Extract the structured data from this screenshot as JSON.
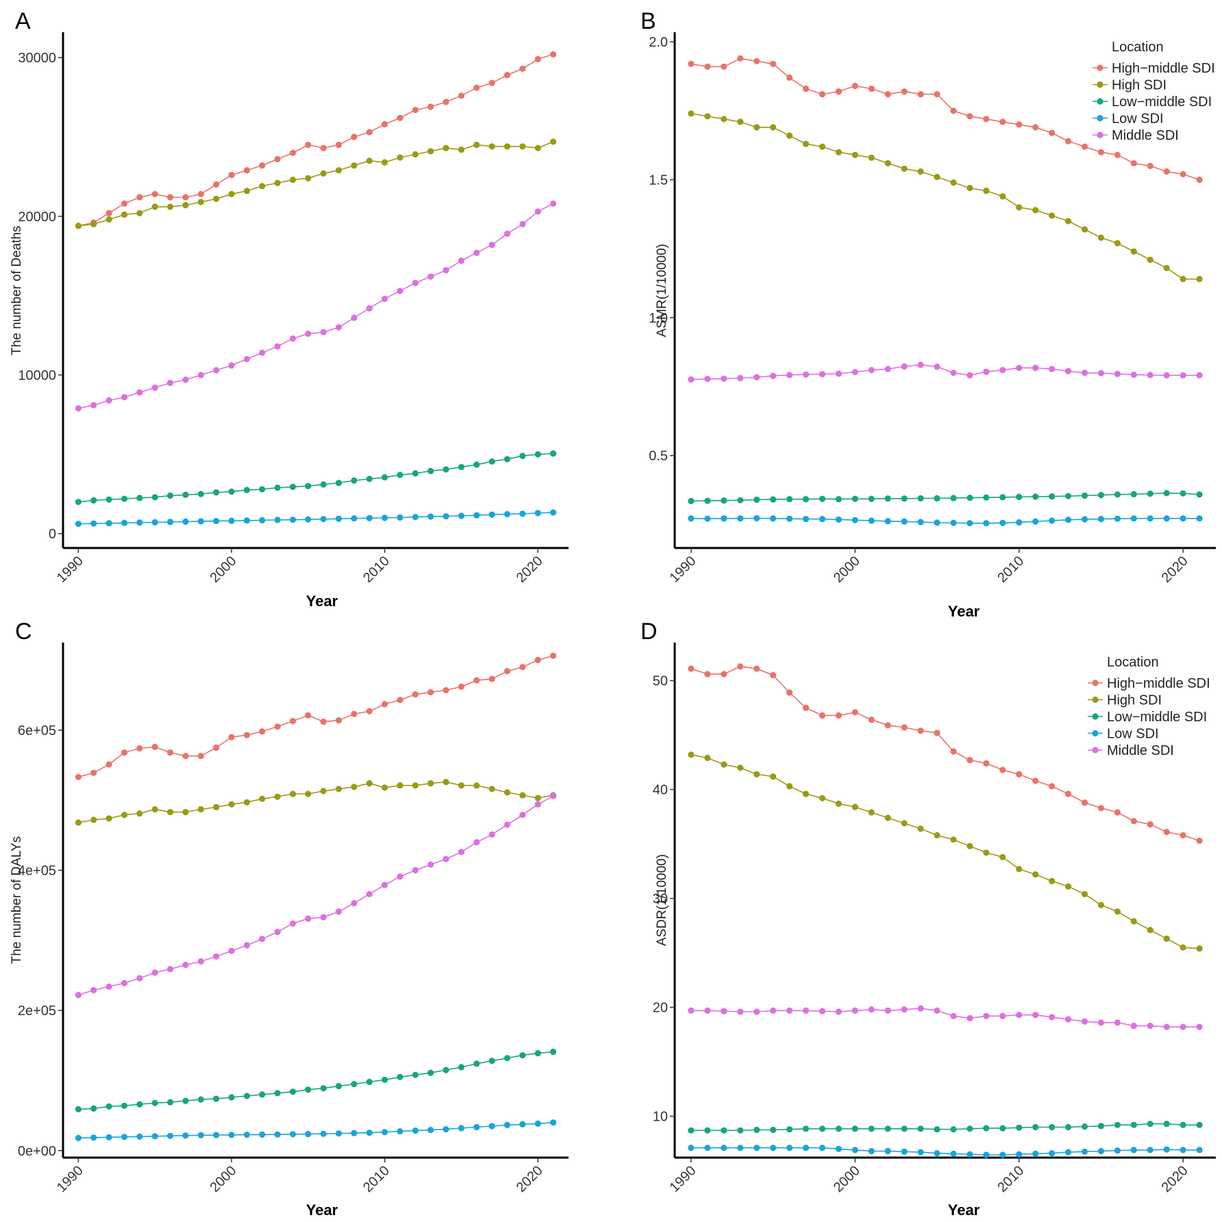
{
  "figure": {
    "panel_letters": [
      "A",
      "B",
      "C",
      "D"
    ]
  },
  "legend": {
    "title": "Location",
    "entries": [
      {
        "name": "High−middle SDI",
        "color": "#e8736b"
      },
      {
        "name": "High SDI",
        "color": "#9a9a16"
      },
      {
        "name": "Low−middle SDI",
        "color": "#16a874"
      },
      {
        "name": "Low SDI",
        "color": "#1ba3dc"
      },
      {
        "name": "Middle SDI",
        "color": "#dc70e0"
      }
    ]
  },
  "chart_data": [
    {
      "type": "line",
      "panel": "A",
      "xlabel": "Year",
      "ylabel": "The number of Deaths",
      "xlim": [
        1989,
        2022
      ],
      "ylim": [
        -900,
        31600
      ],
      "xticks": [
        1990,
        2000,
        2010,
        2020
      ],
      "yticks": [
        0,
        10000,
        20000,
        30000
      ],
      "ytick_labels": [
        "0",
        "10000",
        "20000",
        "30000"
      ],
      "legend": false,
      "x": [
        1990,
        1991,
        1992,
        1993,
        1994,
        1995,
        1996,
        1997,
        1998,
        1999,
        2000,
        2001,
        2002,
        2003,
        2004,
        2005,
        2006,
        2007,
        2008,
        2009,
        2010,
        2011,
        2012,
        2013,
        2014,
        2015,
        2016,
        2017,
        2018,
        2019,
        2020,
        2021
      ],
      "series": [
        {
          "name": "High−middle SDI",
          "values": [
            19400,
            19600,
            20200,
            20800,
            21200,
            21400,
            21200,
            21200,
            21400,
            22000,
            22600,
            22900,
            23200,
            23600,
            24000,
            24500,
            24300,
            24500,
            25000,
            25300,
            25800,
            26200,
            26700,
            26900,
            27200,
            27600,
            28100,
            28400,
            28900,
            29300,
            29900,
            30200
          ]
        },
        {
          "name": "High SDI",
          "values": [
            19400,
            19500,
            19800,
            20100,
            20200,
            20600,
            20600,
            20700,
            20900,
            21100,
            21400,
            21600,
            21900,
            22100,
            22300,
            22400,
            22700,
            22900,
            23200,
            23500,
            23400,
            23700,
            23900,
            24100,
            24300,
            24200,
            24500,
            24400,
            24400,
            24400,
            24300,
            24700
          ]
        },
        {
          "name": "Low−middle SDI",
          "values": [
            2000,
            2100,
            2150,
            2200,
            2250,
            2300,
            2400,
            2450,
            2500,
            2600,
            2650,
            2750,
            2800,
            2900,
            2950,
            3000,
            3100,
            3200,
            3350,
            3450,
            3550,
            3700,
            3800,
            3950,
            4050,
            4200,
            4350,
            4550,
            4700,
            4900,
            5000,
            5050
          ]
        },
        {
          "name": "Low SDI",
          "values": [
            620,
            640,
            660,
            680,
            700,
            720,
            740,
            760,
            780,
            800,
            810,
            830,
            850,
            870,
            880,
            900,
            920,
            940,
            960,
            980,
            1000,
            1020,
            1050,
            1080,
            1100,
            1130,
            1160,
            1200,
            1230,
            1260,
            1300,
            1340
          ]
        },
        {
          "name": "Middle SDI",
          "values": [
            7900,
            8100,
            8400,
            8600,
            8900,
            9200,
            9500,
            9700,
            10000,
            10300,
            10600,
            11000,
            11400,
            11800,
            12300,
            12600,
            12700,
            13000,
            13600,
            14200,
            14800,
            15300,
            15800,
            16200,
            16600,
            17200,
            17700,
            18200,
            18900,
            19500,
            20300,
            20800
          ]
        }
      ]
    },
    {
      "type": "line",
      "panel": "B",
      "xlabel": "Year",
      "ylabel": "ASMR(1/10000)",
      "xlim": [
        1989,
        2022
      ],
      "ylim": [
        0.165,
        2.035
      ],
      "xticks": [
        1990,
        2000,
        2010,
        2020
      ],
      "yticks": [
        0.5,
        1.0,
        1.5,
        2.0
      ],
      "ytick_labels": [
        "0.5",
        "1.0",
        "1.5",
        "2.0"
      ],
      "legend": true,
      "x": [
        1990,
        1991,
        1992,
        1993,
        1994,
        1995,
        1996,
        1997,
        1998,
        1999,
        2000,
        2001,
        2002,
        2003,
        2004,
        2005,
        2006,
        2007,
        2008,
        2009,
        2010,
        2011,
        2012,
        2013,
        2014,
        2015,
        2016,
        2017,
        2018,
        2019,
        2020,
        2021
      ],
      "series": [
        {
          "name": "High−middle SDI",
          "values": [
            1.92,
            1.91,
            1.91,
            1.94,
            1.93,
            1.92,
            1.87,
            1.83,
            1.81,
            1.82,
            1.84,
            1.83,
            1.81,
            1.82,
            1.81,
            1.81,
            1.75,
            1.73,
            1.72,
            1.71,
            1.7,
            1.69,
            1.67,
            1.64,
            1.62,
            1.6,
            1.59,
            1.56,
            1.55,
            1.53,
            1.52,
            1.5
          ]
        },
        {
          "name": "High SDI",
          "values": [
            1.74,
            1.73,
            1.72,
            1.71,
            1.69,
            1.69,
            1.66,
            1.63,
            1.62,
            1.6,
            1.59,
            1.58,
            1.56,
            1.54,
            1.53,
            1.51,
            1.49,
            1.47,
            1.46,
            1.44,
            1.4,
            1.39,
            1.37,
            1.35,
            1.32,
            1.29,
            1.27,
            1.24,
            1.21,
            1.18,
            1.14,
            1.14
          ]
        },
        {
          "name": "Low−middle SDI",
          "values": [
            0.335,
            0.336,
            0.337,
            0.338,
            0.34,
            0.341,
            0.342,
            0.342,
            0.343,
            0.342,
            0.343,
            0.343,
            0.344,
            0.344,
            0.345,
            0.345,
            0.346,
            0.347,
            0.348,
            0.349,
            0.35,
            0.351,
            0.352,
            0.353,
            0.355,
            0.357,
            0.359,
            0.36,
            0.362,
            0.364,
            0.363,
            0.359
          ]
        },
        {
          "name": "Low SDI",
          "values": [
            0.272,
            0.271,
            0.272,
            0.272,
            0.273,
            0.272,
            0.271,
            0.27,
            0.27,
            0.268,
            0.266,
            0.264,
            0.262,
            0.261,
            0.259,
            0.257,
            0.256,
            0.255,
            0.255,
            0.256,
            0.258,
            0.261,
            0.264,
            0.267,
            0.269,
            0.27,
            0.271,
            0.272,
            0.272,
            0.272,
            0.272,
            0.272
          ]
        },
        {
          "name": "Middle SDI",
          "values": [
            0.776,
            0.778,
            0.779,
            0.781,
            0.784,
            0.789,
            0.792,
            0.794,
            0.795,
            0.797,
            0.803,
            0.81,
            0.814,
            0.823,
            0.829,
            0.822,
            0.8,
            0.791,
            0.804,
            0.81,
            0.818,
            0.818,
            0.814,
            0.806,
            0.8,
            0.799,
            0.796,
            0.793,
            0.792,
            0.791,
            0.791,
            0.791
          ]
        }
      ]
    },
    {
      "type": "line",
      "panel": "C",
      "xlabel": "Year",
      "ylabel": "The number of DALYs",
      "xlim": [
        1989,
        2022
      ],
      "ylim": [
        -10000,
        725000
      ],
      "xticks": [
        1990,
        2000,
        2010,
        2020
      ],
      "yticks": [
        0,
        200000,
        400000,
        600000
      ],
      "ytick_labels": [
        "0e+00",
        "2e+05",
        "4e+05",
        "6e+05"
      ],
      "legend": false,
      "x": [
        1990,
        1991,
        1992,
        1993,
        1994,
        1995,
        1996,
        1997,
        1998,
        1999,
        2000,
        2001,
        2002,
        2003,
        2004,
        2005,
        2006,
        2007,
        2008,
        2009,
        2010,
        2011,
        2012,
        2013,
        2014,
        2015,
        2016,
        2017,
        2018,
        2019,
        2020,
        2021
      ],
      "series": [
        {
          "name": "High−middle SDI",
          "values": [
            533000,
            539000,
            551000,
            568000,
            574000,
            576000,
            568000,
            563000,
            563000,
            575000,
            590000,
            593000,
            598000,
            605000,
            613000,
            621000,
            612000,
            614000,
            623000,
            627000,
            637000,
            643000,
            651000,
            654000,
            657000,
            662000,
            671000,
            673000,
            684000,
            690000,
            700000,
            706000
          ]
        },
        {
          "name": "High SDI",
          "values": [
            468000,
            472000,
            474000,
            479000,
            481000,
            487000,
            483000,
            483000,
            487000,
            490000,
            494000,
            497000,
            502000,
            505000,
            509000,
            509000,
            513000,
            516000,
            519000,
            524000,
            518000,
            521000,
            521000,
            524000,
            526000,
            521000,
            521000,
            516000,
            511000,
            507000,
            503000,
            507000
          ]
        },
        {
          "name": "Low−middle SDI",
          "values": [
            59000,
            60000,
            63000,
            64000,
            66000,
            68000,
            69000,
            71000,
            73000,
            74000,
            76000,
            78000,
            80000,
            82000,
            84000,
            87000,
            89000,
            92000,
            95000,
            98000,
            101000,
            105000,
            108000,
            111000,
            115000,
            119000,
            124000,
            128000,
            132000,
            136000,
            139000,
            141000
          ]
        },
        {
          "name": "Low SDI",
          "values": [
            18000,
            18500,
            19000,
            19500,
            20000,
            20500,
            21000,
            21500,
            22000,
            22200,
            22400,
            22600,
            22800,
            23000,
            23400,
            23600,
            24000,
            24500,
            25000,
            25500,
            26500,
            27500,
            28500,
            29500,
            30500,
            32000,
            33500,
            35000,
            36500,
            37500,
            38500,
            40000
          ]
        },
        {
          "name": "Middle SDI",
          "values": [
            222000,
            229000,
            234000,
            239000,
            246000,
            254000,
            259000,
            265000,
            270000,
            277000,
            285000,
            293000,
            302000,
            312000,
            324000,
            331000,
            333000,
            341000,
            353000,
            366000,
            379000,
            391000,
            400000,
            408000,
            416000,
            426000,
            440000,
            451000,
            465000,
            479000,
            494000,
            506000
          ]
        }
      ]
    },
    {
      "type": "line",
      "panel": "D",
      "xlabel": "Year",
      "ylabel": "ASDR(1/10000)",
      "xlim": [
        1989,
        2022
      ],
      "ylim": [
        6.2,
        53.5
      ],
      "xticks": [
        1990,
        2000,
        2010,
        2020
      ],
      "yticks": [
        10,
        20,
        30,
        40,
        50
      ],
      "ytick_labels": [
        "10",
        "20",
        "30",
        "40",
        "50"
      ],
      "legend": true,
      "x": [
        1990,
        1991,
        1992,
        1993,
        1994,
        1995,
        1996,
        1997,
        1998,
        1999,
        2000,
        2001,
        2002,
        2003,
        2004,
        2005,
        2006,
        2007,
        2008,
        2009,
        2010,
        2011,
        2012,
        2013,
        2014,
        2015,
        2016,
        2017,
        2018,
        2019,
        2020,
        2021
      ],
      "series": [
        {
          "name": "High−middle SDI",
          "values": [
            51.1,
            50.6,
            50.6,
            51.3,
            51.1,
            50.5,
            48.9,
            47.5,
            46.8,
            46.8,
            47.1,
            46.4,
            45.9,
            45.7,
            45.4,
            45.2,
            43.5,
            42.7,
            42.4,
            41.8,
            41.4,
            40.8,
            40.3,
            39.6,
            38.8,
            38.3,
            37.9,
            37.1,
            36.8,
            36.1,
            35.8,
            35.3
          ]
        },
        {
          "name": "High SDI",
          "values": [
            43.2,
            42.9,
            42.3,
            42.0,
            41.4,
            41.2,
            40.3,
            39.6,
            39.2,
            38.7,
            38.4,
            37.9,
            37.4,
            36.9,
            36.4,
            35.8,
            35.4,
            34.8,
            34.2,
            33.8,
            32.7,
            32.2,
            31.6,
            31.1,
            30.4,
            29.4,
            28.8,
            27.9,
            27.1,
            26.3,
            25.5,
            25.4
          ]
        },
        {
          "name": "Low−middle SDI",
          "values": [
            8.7,
            8.7,
            8.7,
            8.7,
            8.75,
            8.75,
            8.8,
            8.85,
            8.85,
            8.85,
            8.85,
            8.85,
            8.85,
            8.85,
            8.85,
            8.8,
            8.8,
            8.85,
            8.9,
            8.9,
            8.95,
            9.0,
            9.0,
            9.0,
            9.05,
            9.1,
            9.2,
            9.2,
            9.3,
            9.3,
            9.2,
            9.2
          ]
        },
        {
          "name": "Low SDI",
          "values": [
            7.1,
            7.1,
            7.1,
            7.1,
            7.1,
            7.1,
            7.1,
            7.1,
            7.1,
            7.0,
            6.9,
            6.8,
            6.8,
            6.75,
            6.7,
            6.6,
            6.55,
            6.5,
            6.45,
            6.45,
            6.5,
            6.55,
            6.6,
            6.7,
            6.75,
            6.8,
            6.85,
            6.9,
            6.9,
            6.95,
            6.9,
            6.9
          ]
        },
        {
          "name": "Middle SDI",
          "values": [
            19.7,
            19.7,
            19.65,
            19.6,
            19.6,
            19.7,
            19.7,
            19.7,
            19.65,
            19.6,
            19.7,
            19.8,
            19.7,
            19.8,
            19.9,
            19.7,
            19.2,
            19.0,
            19.2,
            19.2,
            19.3,
            19.3,
            19.1,
            18.9,
            18.7,
            18.6,
            18.6,
            18.3,
            18.3,
            18.2,
            18.2,
            18.2
          ]
        }
      ]
    }
  ]
}
